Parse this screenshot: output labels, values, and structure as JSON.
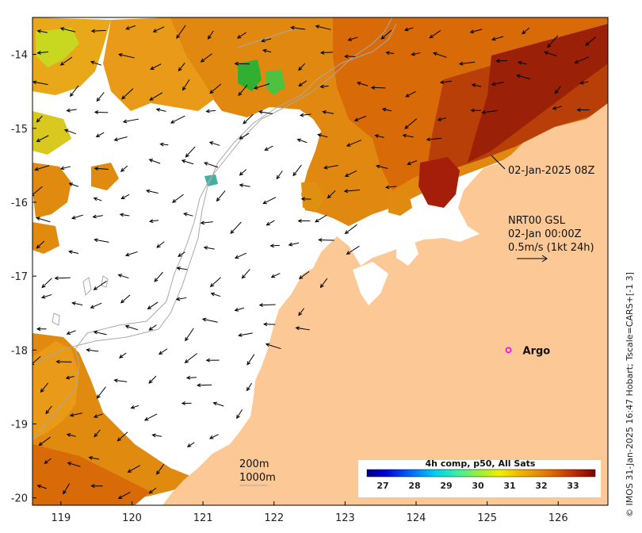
{
  "map": {
    "lon_range": [
      118.6,
      126.7
    ],
    "lat_range": [
      -20.1,
      -13.5
    ],
    "lon_ticks": [
      119,
      120,
      121,
      122,
      123,
      124,
      125,
      126
    ],
    "lat_ticks": [
      -14,
      -15,
      -16,
      -17,
      -18,
      -19,
      -20
    ]
  },
  "annotations": {
    "timestamp": "02-Jan-2025 08Z",
    "current_source": "NRT00 GSL",
    "current_time": "02-Jan 00:00Z",
    "current_scale": "0.5m/s (1kt 24h)",
    "argo_label": "Argo",
    "isobath_200": "200m",
    "isobath_1000": "1000m"
  },
  "argo": {
    "lon": 125.3,
    "lat": -18.0,
    "color": "#ee00ee"
  },
  "colorbar": {
    "title": "4h comp, p50, All Sats",
    "min": 26.5,
    "max": 33.7,
    "ticks": [
      27,
      28,
      29,
      30,
      31,
      32,
      33
    ]
  },
  "credit": "© IMOS 31-Jan-2025 16:47 Hobart; Tscale=CARS+[-1 3]",
  "colors": {
    "land": "#fcc896",
    "frame": "#000000",
    "isobath": "#a8a8a8",
    "arrow": "#000000"
  }
}
